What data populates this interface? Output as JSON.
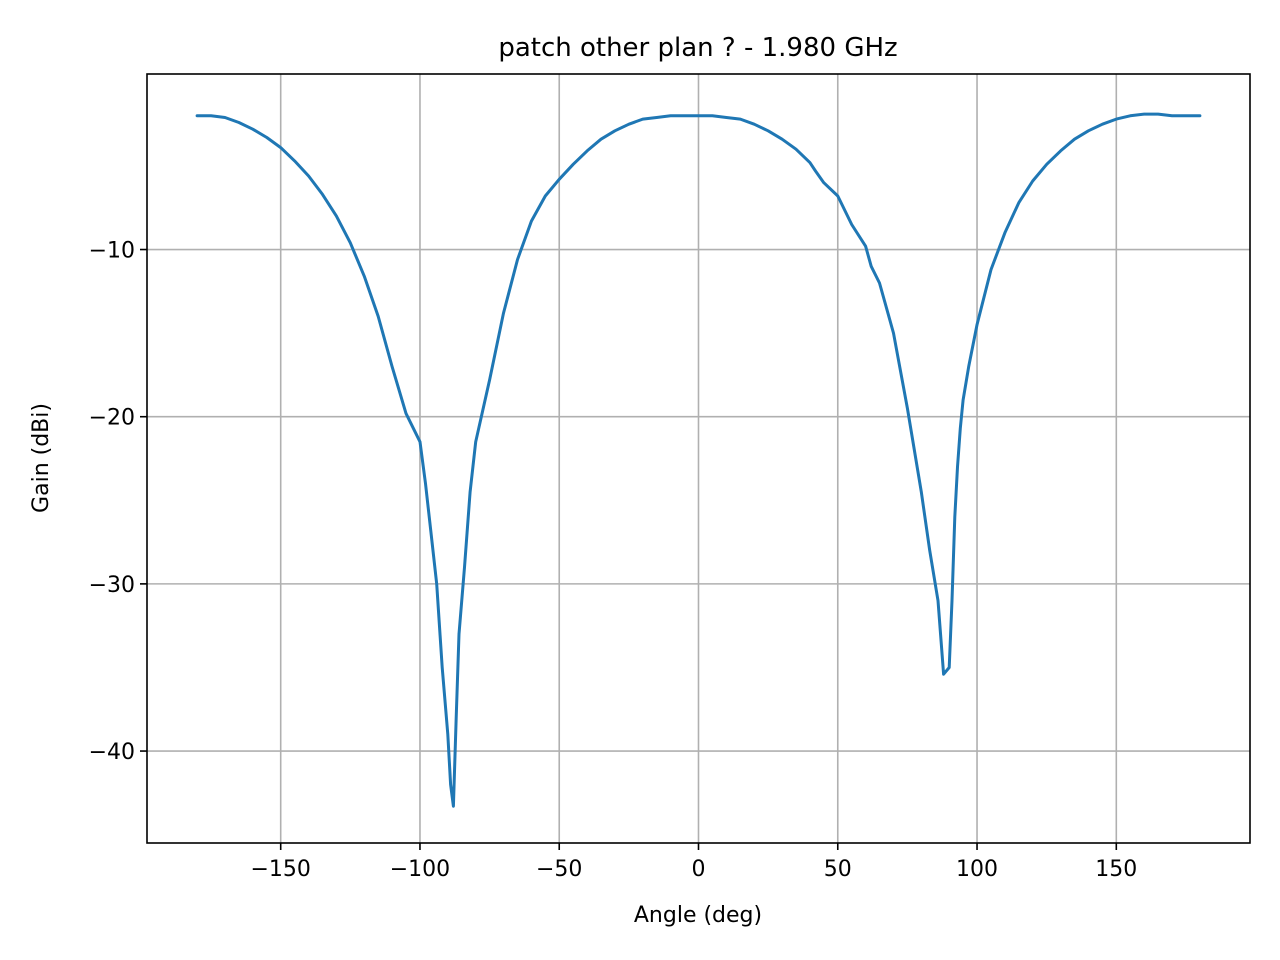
{
  "chart_data": {
    "type": "line",
    "title": "patch other plan ? - 1.980 GHz",
    "xlabel": "Angle (deg)",
    "ylabel": "Gain (dBi)",
    "xlim": [
      -198,
      198
    ],
    "ylim": [
      -45.5,
      0.5
    ],
    "xticks": [
      -150,
      -100,
      -50,
      0,
      50,
      100,
      150
    ],
    "xtick_labels": [
      "−150",
      "−100",
      "−50",
      "0",
      "50",
      "100",
      "150"
    ],
    "yticks": [
      -10,
      -20,
      -30,
      -40
    ],
    "ytick_labels": [
      "−10",
      "−20",
      "−30",
      "−40"
    ],
    "grid": true,
    "colors": {
      "series": "#1f77b4"
    },
    "series": [
      {
        "x": [
          -180,
          -175,
          -170,
          -165,
          -160,
          -155,
          -150,
          -145,
          -140,
          -135,
          -130,
          -125,
          -120,
          -115,
          -110,
          -105,
          -100,
          -98,
          -96,
          -94,
          -92,
          -90,
          -89,
          -88,
          -87,
          -86,
          -84,
          -82,
          -80,
          -75,
          -70,
          -65,
          -60,
          -55,
          -50,
          -45,
          -40,
          -35,
          -30,
          -25,
          -20,
          -15,
          -10,
          -5,
          0,
          5,
          10,
          15,
          20,
          25,
          30,
          35,
          40,
          42,
          45,
          50,
          55,
          60,
          62,
          65,
          70,
          75,
          80,
          83,
          86,
          88,
          90,
          91,
          92,
          93,
          94,
          95,
          97,
          100,
          105,
          110,
          115,
          120,
          125,
          130,
          135,
          140,
          145,
          150,
          155,
          160,
          165,
          170,
          175,
          180
        ],
        "y": [
          -2.0,
          -2.0,
          -2.1,
          -2.4,
          -2.8,
          -3.3,
          -3.9,
          -4.7,
          -5.6,
          -6.7,
          -8.0,
          -9.6,
          -11.6,
          -14.0,
          -17.0,
          -19.8,
          -21.5,
          -24.0,
          -27.0,
          -30.0,
          -35.0,
          -39.0,
          -42.0,
          -43.3,
          -38.0,
          -33.0,
          -29.0,
          -24.5,
          -21.5,
          -17.8,
          -13.8,
          -10.6,
          -8.3,
          -6.8,
          -5.8,
          -4.9,
          -4.1,
          -3.4,
          -2.9,
          -2.5,
          -2.2,
          -2.1,
          -2.0,
          -2.0,
          -2.0,
          -2.0,
          -2.1,
          -2.2,
          -2.5,
          -2.9,
          -3.4,
          -4.0,
          -4.8,
          -5.3,
          -6.0,
          -6.8,
          -8.5,
          -9.8,
          -11.0,
          -12.0,
          -15.0,
          -19.5,
          -24.5,
          -28.0,
          -31.0,
          -35.4,
          -35.0,
          -31.0,
          -26.0,
          -23.0,
          -20.7,
          -19.0,
          -17.0,
          -14.5,
          -11.2,
          -9.0,
          -7.2,
          -5.9,
          -4.9,
          -4.1,
          -3.4,
          -2.9,
          -2.5,
          -2.2,
          -2.0,
          -1.9,
          -1.9,
          -2.0,
          -2.0,
          -2.0
        ]
      }
    ]
  }
}
